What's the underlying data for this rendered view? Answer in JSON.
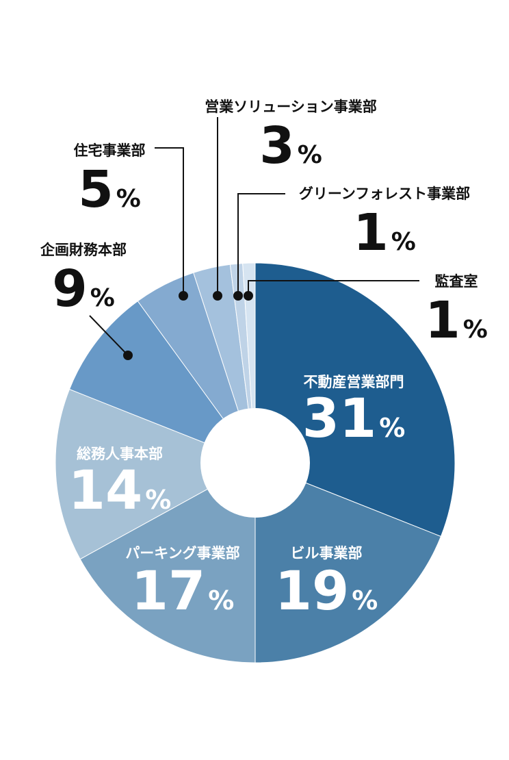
{
  "chart_data": {
    "type": "pie",
    "unit": "%",
    "slices": [
      {
        "label": "不動産営業部門",
        "value": 31,
        "color": "#1e5d8f",
        "text_color": "#ffffff"
      },
      {
        "label": "ビル事業部",
        "value": 19,
        "color": "#4b80a8",
        "text_color": "#ffffff"
      },
      {
        "label": "パーキング事業部",
        "value": 17,
        "color": "#7aa2c1",
        "text_color": "#ffffff"
      },
      {
        "label": "総務人事本部",
        "value": 14,
        "color": "#a6c1d6",
        "text_color": "#ffffff"
      },
      {
        "label": "企画財務本部",
        "value": 9,
        "color": "#6899c7",
        "text_color": "#111111"
      },
      {
        "label": "住宅事業部",
        "value": 5,
        "color": "#84aad0",
        "text_color": "#111111"
      },
      {
        "label": "営業ソリューション事業部",
        "value": 3,
        "color": "#a4c1dd",
        "text_color": "#111111"
      },
      {
        "label": "グリーンフォレスト事業部",
        "value": 1,
        "color": "#bfd3e7",
        "text_color": "#111111"
      },
      {
        "label": "監査室",
        "value": 1,
        "color": "#d6e4f1",
        "text_color": "#111111"
      }
    ]
  }
}
